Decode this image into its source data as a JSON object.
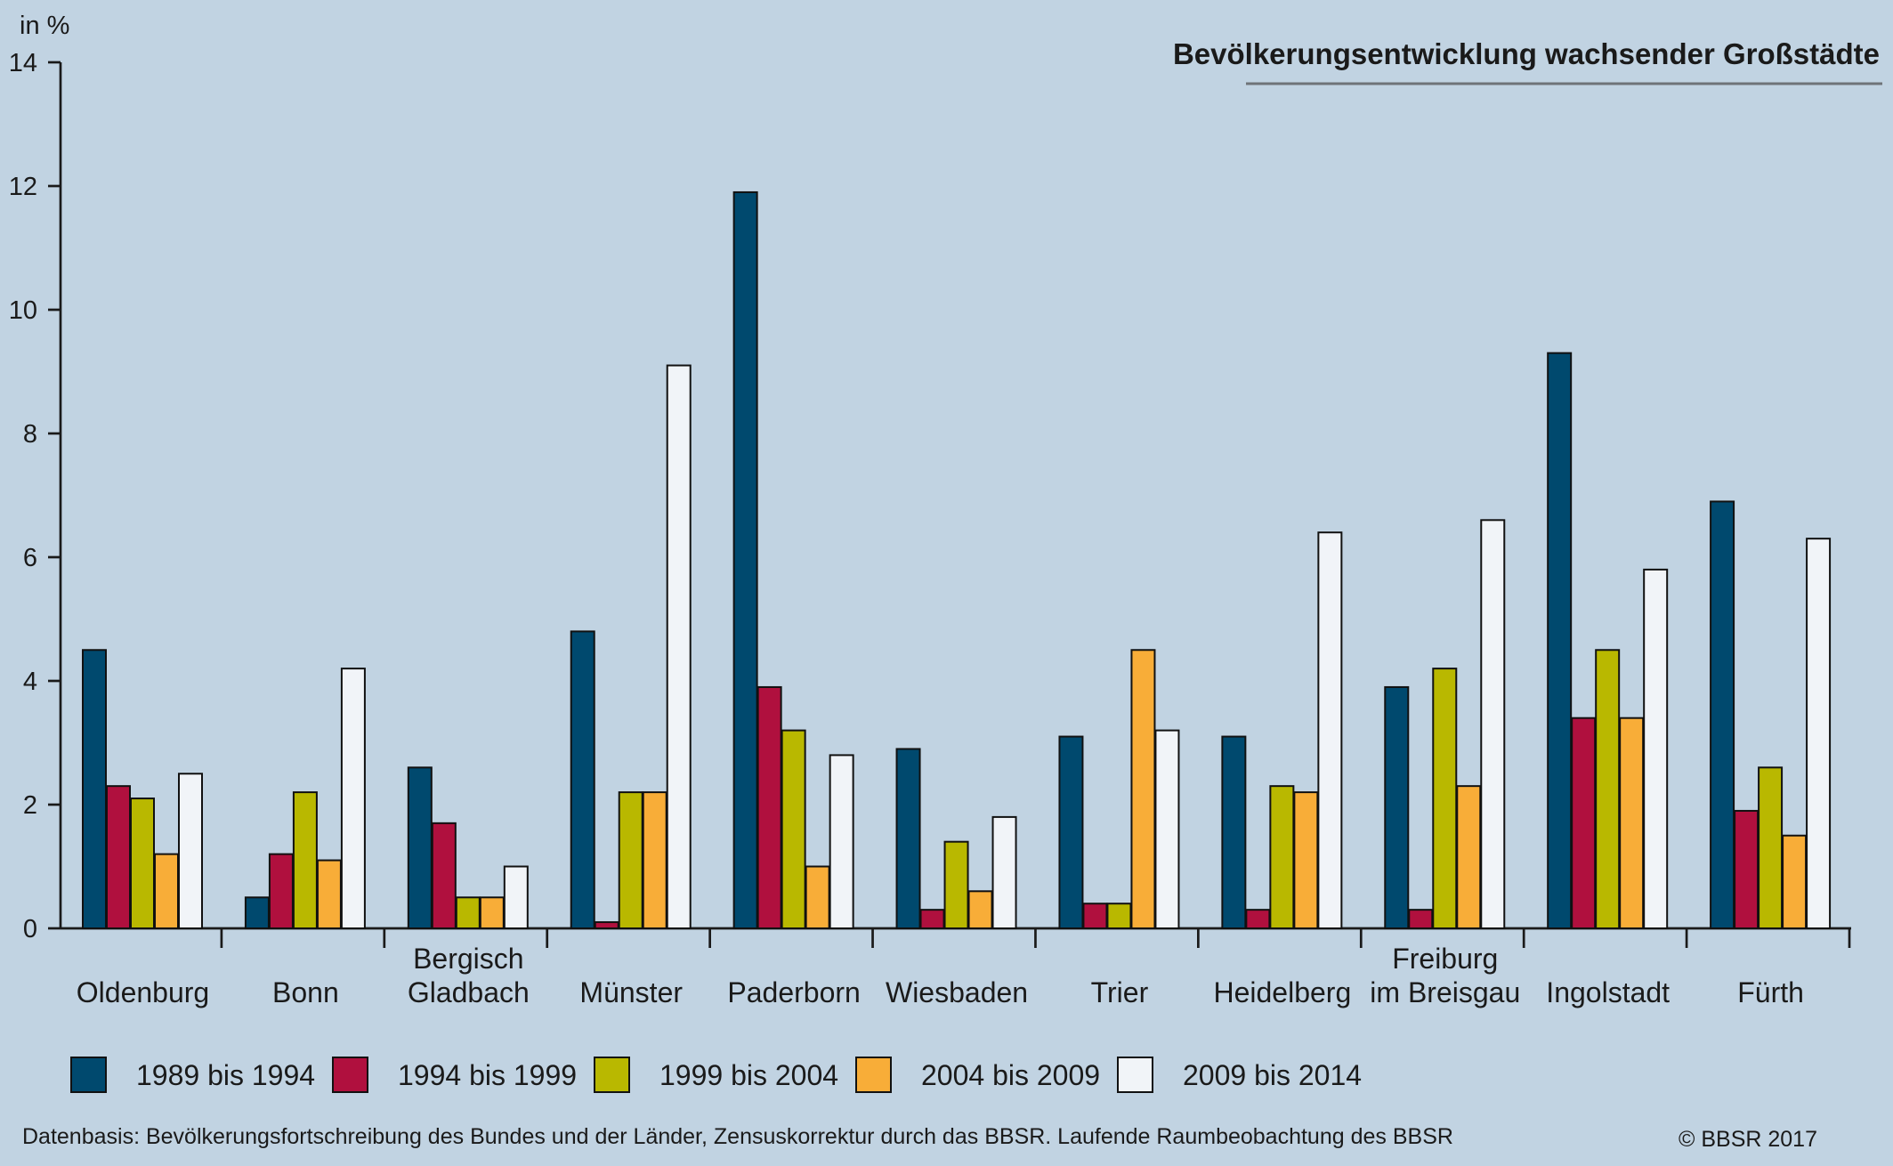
{
  "chart_data": {
    "type": "bar",
    "title": "Bevölkerungsentwicklung wachsender Großstädte",
    "ylabel": "in %",
    "xlabel": "",
    "ylim": [
      0,
      14
    ],
    "yticks": [
      0,
      2,
      4,
      6,
      8,
      10,
      12,
      14
    ],
    "grid": false,
    "legend_position": "bottom",
    "categories": [
      [
        "Oldenburg"
      ],
      [
        "Bonn"
      ],
      [
        "Bergisch",
        "Gladbach"
      ],
      [
        "Münster"
      ],
      [
        "Paderborn"
      ],
      [
        "Wiesbaden"
      ],
      [
        "Trier"
      ],
      [
        "Heidelberg"
      ],
      [
        "Freiburg",
        "im Breisgau"
      ],
      [
        "Ingolstadt"
      ],
      [
        "Fürth"
      ]
    ],
    "series": [
      {
        "name": "1989 bis 1994",
        "color": "#00496e",
        "values": [
          4.5,
          0.5,
          2.6,
          4.8,
          11.9,
          2.9,
          3.1,
          3.1,
          3.9,
          9.3,
          6.9
        ]
      },
      {
        "name": "1994 bis 1999",
        "color": "#b0103e",
        "values": [
          2.3,
          1.2,
          1.7,
          0.1,
          3.9,
          0.3,
          0.4,
          0.3,
          0.3,
          3.4,
          1.9
        ]
      },
      {
        "name": "1999 bis 2004",
        "color": "#b9b800",
        "values": [
          2.1,
          2.2,
          0.5,
          2.2,
          3.2,
          1.4,
          0.4,
          2.3,
          4.2,
          4.5,
          2.6
        ]
      },
      {
        "name": "2004 bis 2009",
        "color": "#f8ad38",
        "values": [
          1.2,
          1.1,
          0.5,
          2.2,
          1.0,
          0.6,
          4.5,
          2.2,
          2.3,
          3.4,
          1.5
        ]
      },
      {
        "name": "2009 bis 2014",
        "color": "#f1f4f8",
        "values": [
          2.5,
          4.2,
          1.0,
          9.1,
          2.8,
          1.8,
          3.2,
          6.4,
          6.6,
          5.8,
          6.3
        ]
      }
    ]
  },
  "footer": {
    "source": "Datenbasis: Bevölkerungsfortschreibung des Bundes und der Länder, Zensuskorrektur durch das BBSR. Laufende Raumbeobachtung des BBSR",
    "copyright": "© BBSR 2017"
  }
}
